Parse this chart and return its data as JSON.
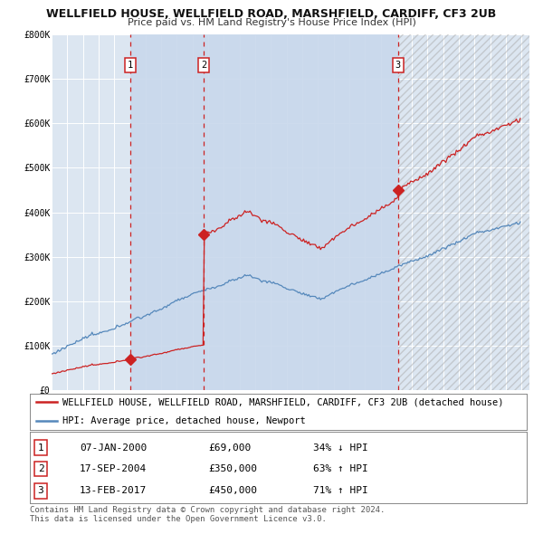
{
  "title": "WELLFIELD HOUSE, WELLFIELD ROAD, MARSHFIELD, CARDIFF, CF3 2UB",
  "subtitle": "Price paid vs. HM Land Registry's House Price Index (HPI)",
  "ylim": [
    0,
    800000
  ],
  "yticks": [
    0,
    100000,
    200000,
    300000,
    400000,
    500000,
    600000,
    700000,
    800000
  ],
  "ytick_labels": [
    "£0",
    "£100K",
    "£200K",
    "£300K",
    "£400K",
    "£500K",
    "£600K",
    "£700K",
    "£800K"
  ],
  "xlim_start": 1995.0,
  "xlim_end": 2025.5,
  "background_color": "#ffffff",
  "plot_bg_color": "#dce6f1",
  "grid_color": "#ffffff",
  "hpi_color": "#5588bb",
  "price_color": "#cc2222",
  "vline_color": "#cc2222",
  "legend_label_price": "WELLFIELD HOUSE, WELLFIELD ROAD, MARSHFIELD, CARDIFF, CF3 2UB (detached house)",
  "legend_label_hpi": "HPI: Average price, detached house, Newport",
  "sale1_year": 2000.03,
  "sale1_price": 69000,
  "sale2_year": 2004.72,
  "sale2_price": 350000,
  "sale3_year": 2017.12,
  "sale3_price": 450000,
  "table_rows": [
    {
      "num": "1",
      "date": "07-JAN-2000",
      "price": "£69,000",
      "pct": "34% ↓ HPI"
    },
    {
      "num": "2",
      "date": "17-SEP-2004",
      "price": "£350,000",
      "pct": "63% ↑ HPI"
    },
    {
      "num": "3",
      "date": "13-FEB-2017",
      "price": "£450,000",
      "pct": "71% ↑ HPI"
    }
  ],
  "footer": "Contains HM Land Registry data © Crown copyright and database right 2024.\nThis data is licensed under the Open Government Licence v3.0.",
  "title_fontsize": 9.0,
  "subtitle_fontsize": 8.0,
  "tick_fontsize": 7.0,
  "legend_fontsize": 7.5,
  "table_fontsize": 8.0,
  "footer_fontsize": 6.5
}
